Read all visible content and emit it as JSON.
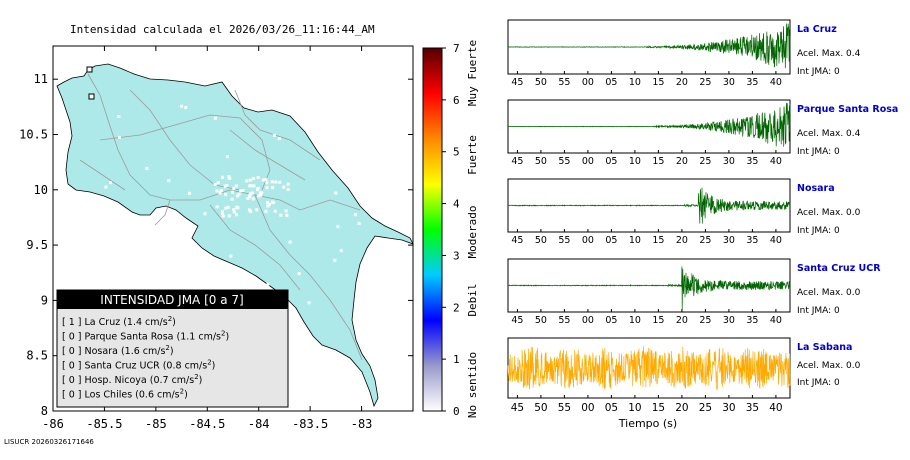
{
  "title": "Intensidad calculada el 2026/03/26_11:16:44_AM",
  "credit": "LISUCR 20260326171646",
  "map": {
    "x_ticks": [
      "-86",
      "-85.5",
      "-85",
      "-84.5",
      "-84",
      "-83.5",
      "-83"
    ],
    "y_ticks": [
      "11",
      "10.5",
      "10",
      "9.5",
      "9",
      "8.5",
      "8"
    ],
    "xlim": [
      -86,
      -82.5
    ],
    "ylim": [
      8,
      11.3
    ],
    "land_color": "#aee9e9",
    "legend": {
      "title": "INTENSIDAD JMA [0 a 7]",
      "unit": "cm/s",
      "unit_sup": "2",
      "items": [
        {
          "intensity": "[ 1 ]",
          "name": "La Cruz",
          "accel": "(1.4"
        },
        {
          "intensity": "[ 0 ]",
          "name": "Parque Santa Rosa",
          "accel": "(1.1"
        },
        {
          "intensity": "[ 0 ]",
          "name": "Nosara",
          "accel": "(1.6"
        },
        {
          "intensity": "[ 0 ]",
          "name": "Santa Cruz UCR",
          "accel": "(0.8"
        },
        {
          "intensity": "[ 0 ]",
          "name": "Hosp. Nicoya",
          "accel": "(0.7"
        },
        {
          "intensity": "[ 0 ]",
          "name": "Los Chiles",
          "accel": "(0.6"
        }
      ]
    }
  },
  "colorbar": {
    "ticks": [
      "0",
      "1",
      "2",
      "3",
      "4",
      "5",
      "6",
      "7"
    ],
    "labels": [
      "No sentido",
      "Debil",
      "Moderado",
      "Fuerte",
      "Muy Fuerte"
    ],
    "stops": [
      "#ffffff",
      "#9999cc",
      "#0000ff",
      "#00ccff",
      "#00ff00",
      "#ffff00",
      "#ff8800",
      "#ff0000",
      "#550000"
    ]
  },
  "chart_data": {
    "type": "line",
    "xlabel": "Tiempo (s)",
    "x_ticks": [
      "45",
      "50",
      "55",
      "00",
      "05",
      "10",
      "15",
      "20",
      "25",
      "30",
      "35",
      "40"
    ],
    "series": [
      {
        "name": "La Cruz",
        "accel_label": "Acel. Max. 0.4",
        "int_label": "Int JMA: 0",
        "color": "#006600",
        "onset_tick": 12.5,
        "shape": "rising"
      },
      {
        "name": "Parque Santa Rosa",
        "accel_label": "Acel. Max. 0.4",
        "int_label": "Int JMA: 0",
        "color": "#006600",
        "onset_tick": 14,
        "shape": "rising"
      },
      {
        "name": "Nosara",
        "accel_label": "Acel. Max. 0.0",
        "int_label": "Int JMA: 0",
        "color": "#006600",
        "onset_tick": 23.5,
        "shape": "burst"
      },
      {
        "name": "Santa Cruz UCR",
        "accel_label": "Acel. Max. 0.0",
        "int_label": "Int JMA: 0",
        "color": "#006600",
        "onset_tick": 20,
        "shape": "burst"
      },
      {
        "name": "La Sabana",
        "accel_label": "Acel. Max. 0.0",
        "int_label": "Int JMA: 0",
        "color": "#ffaa00",
        "onset_tick": 0,
        "shape": "noise"
      }
    ]
  }
}
